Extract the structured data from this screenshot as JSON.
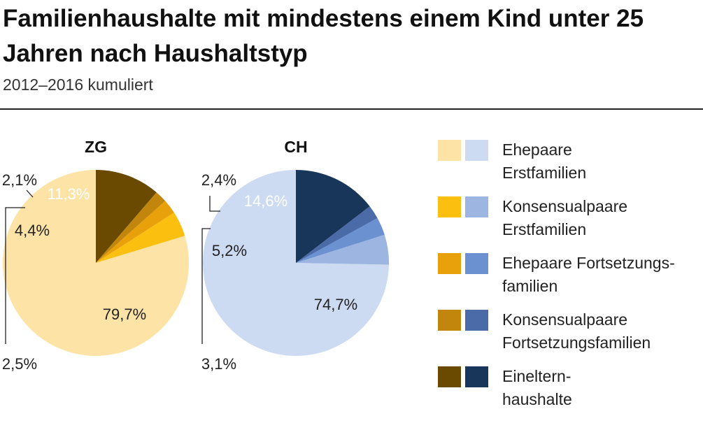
{
  "title": "Familienhaushalte mit mindestens einem Kind unter 25 Jahren nach Haushaltstyp",
  "subtitle": "2012–2016 kumuliert",
  "legend": [
    {
      "label": "Ehepaare\nErstfamilien",
      "color_zg": "#fde4a6",
      "color_ch": "#ccdaf2"
    },
    {
      "label": "Konsensualpaare\nErstfamilien",
      "color_zg": "#fbbf0f",
      "color_ch": "#9cb5e1"
    },
    {
      "label": "Ehepaare Fortsetzungs-\nfamilien",
      "color_zg": "#e8a10a",
      "color_ch": "#6b91d1"
    },
    {
      "label": "Konsensualpaare\nFortsetzungsfamilien",
      "color_zg": "#c3860c",
      "color_ch": "#4a6aa8"
    },
    {
      "label": "Einneltern-\nhaushalte",
      "color_zg": "#6a4a00",
      "color_ch": "#183659"
    }
  ],
  "chart_data": [
    {
      "type": "pie",
      "title": "ZG",
      "categories": [
        "Ehepaare Erstfamilien",
        "Konsensualpaare Erstfamilien",
        "Ehepaare Fortsetzungsfamilien",
        "Konsensualpaare Fortsetzungsfamilien",
        "Einelternhaushalte"
      ],
      "values": [
        79.7,
        4.4,
        2.5,
        2.1,
        11.3
      ],
      "labels": [
        "79,7%",
        "4,4%",
        "2,5%",
        "2,1%",
        "11,3%"
      ],
      "colors": [
        "#fde4a6",
        "#fbbf0f",
        "#e8a10a",
        "#c3860c",
        "#6a4a00"
      ]
    },
    {
      "type": "pie",
      "title": "CH",
      "categories": [
        "Ehepaare Erstfamilien",
        "Konsensualpaare Erstfamilien",
        "Ehepaare Fortsetzungsfamilien",
        "Konsensualpaare Fortsetzungsfamilien",
        "Einelternhaushalte"
      ],
      "values": [
        74.7,
        5.2,
        3.1,
        2.4,
        14.6
      ],
      "labels": [
        "74,7%",
        "5,2%",
        "3,1%",
        "2,4%",
        "14,6%"
      ],
      "colors": [
        "#ccdaf2",
        "#9cb5e1",
        "#6b91d1",
        "#4a6aa8",
        "#183659"
      ]
    }
  ]
}
